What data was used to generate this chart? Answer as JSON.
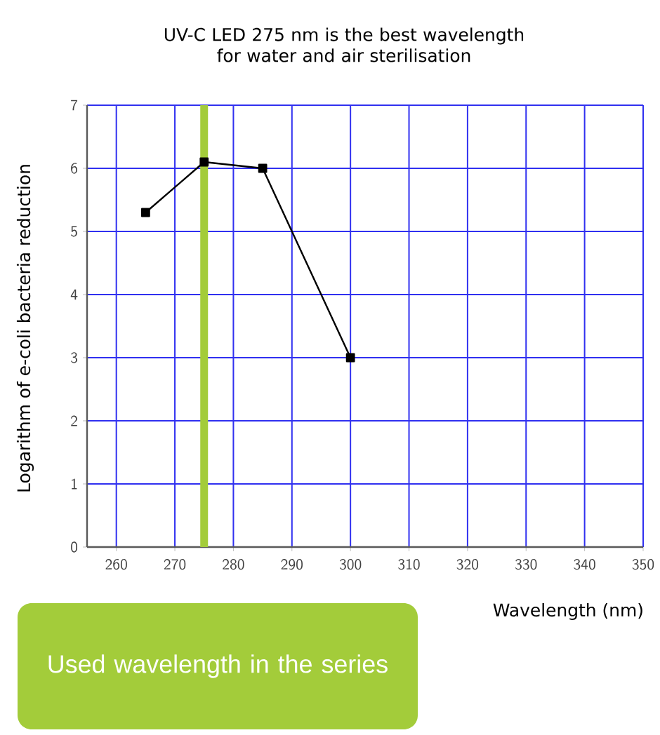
{
  "chart_data": {
    "type": "line",
    "title": "UV-C LED 275 nm is the best wavelength for water and air sterilisation",
    "xlabel": "Wavelength (nm)",
    "ylabel": "Logarithm of e-coli bacteria reduction",
    "x": [
      265,
      275,
      285,
      300
    ],
    "series": [
      {
        "color": "#000000",
        "values": [
          5.3,
          6.1,
          6.0,
          3.0
        ]
      }
    ],
    "xlim": [
      255,
      350
    ],
    "ylim": [
      0,
      7
    ],
    "xticks": [
      260,
      270,
      280,
      290,
      300,
      310,
      320,
      330,
      340,
      350
    ],
    "yticks": [
      0,
      1,
      2,
      3,
      4,
      5,
      6,
      7
    ],
    "grid": true,
    "marker": "square",
    "line_style": "solid",
    "ref_lines": [
      {
        "axis": "x",
        "value": 275,
        "color": "#a3cc3a"
      }
    ],
    "annotations": [
      "Used wavelength in the series"
    ]
  }
}
